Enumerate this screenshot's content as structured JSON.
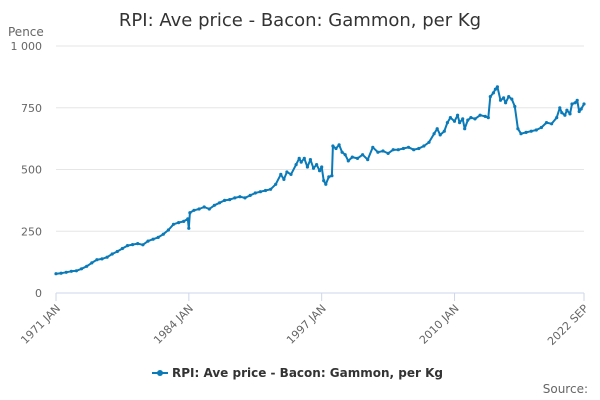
{
  "chart_data": {
    "type": "line",
    "title": "RPI: Ave price - Bacon: Gammon, per Kg",
    "unit_label": "Pence",
    "ylim": [
      0,
      1000
    ],
    "y_ticks": [
      {
        "value": 0,
        "label": "0"
      },
      {
        "value": 250,
        "label": "250"
      },
      {
        "value": 500,
        "label": "500"
      },
      {
        "value": 750,
        "label": "750"
      },
      {
        "value": 1000,
        "label": "1 000"
      }
    ],
    "x_range": [
      1971.0,
      2022.67
    ],
    "x_ticks": [
      {
        "value": 1971.0,
        "label": "1971 JAN"
      },
      {
        "value": 1984.0,
        "label": "1984 JAN"
      },
      {
        "value": 1997.0,
        "label": "1997 JAN"
      },
      {
        "value": 2010.0,
        "label": "2010 JAN"
      },
      {
        "value": 2022.67,
        "label": "2022 SEP"
      }
    ],
    "grid": true,
    "legend_position": "bottom-center",
    "series": [
      {
        "name": "RPI: Ave price - Bacon: Gammon, per Kg",
        "color": "#0a7ab8",
        "points": [
          [
            1971.0,
            78
          ],
          [
            1971.5,
            80
          ],
          [
            1972.0,
            84
          ],
          [
            1972.5,
            88
          ],
          [
            1973.0,
            90
          ],
          [
            1973.5,
            98
          ],
          [
            1974.0,
            108
          ],
          [
            1974.5,
            122
          ],
          [
            1975.0,
            135
          ],
          [
            1975.5,
            138
          ],
          [
            1976.0,
            145
          ],
          [
            1976.5,
            158
          ],
          [
            1977.0,
            168
          ],
          [
            1977.5,
            180
          ],
          [
            1978.0,
            192
          ],
          [
            1978.5,
            196
          ],
          [
            1979.0,
            200
          ],
          [
            1979.5,
            195
          ],
          [
            1980.0,
            210
          ],
          [
            1980.5,
            218
          ],
          [
            1981.0,
            225
          ],
          [
            1981.5,
            238
          ],
          [
            1982.0,
            255
          ],
          [
            1982.5,
            278
          ],
          [
            1983.0,
            285
          ],
          [
            1983.5,
            290
          ],
          [
            1983.9,
            300
          ],
          [
            1984.0,
            262
          ],
          [
            1984.1,
            325
          ],
          [
            1984.5,
            335
          ],
          [
            1985.0,
            340
          ],
          [
            1985.5,
            348
          ],
          [
            1986.0,
            340
          ],
          [
            1986.5,
            355
          ],
          [
            1987.0,
            365
          ],
          [
            1987.5,
            375
          ],
          [
            1988.0,
            378
          ],
          [
            1988.5,
            385
          ],
          [
            1989.0,
            390
          ],
          [
            1989.5,
            385
          ],
          [
            1990.0,
            395
          ],
          [
            1990.5,
            405
          ],
          [
            1991.0,
            410
          ],
          [
            1991.5,
            415
          ],
          [
            1992.0,
            420
          ],
          [
            1992.5,
            440
          ],
          [
            1993.0,
            480
          ],
          [
            1993.3,
            460
          ],
          [
            1993.6,
            490
          ],
          [
            1994.0,
            480
          ],
          [
            1994.5,
            520
          ],
          [
            1994.8,
            545
          ],
          [
            1995.0,
            530
          ],
          [
            1995.3,
            545
          ],
          [
            1995.6,
            510
          ],
          [
            1995.9,
            540
          ],
          [
            1996.2,
            505
          ],
          [
            1996.5,
            520
          ],
          [
            1996.8,
            495
          ],
          [
            1997.0,
            510
          ],
          [
            1997.2,
            455
          ],
          [
            1997.4,
            440
          ],
          [
            1997.7,
            470
          ],
          [
            1998.0,
            475
          ],
          [
            1998.1,
            595
          ],
          [
            1998.4,
            585
          ],
          [
            1998.7,
            600
          ],
          [
            1999.0,
            570
          ],
          [
            1999.3,
            560
          ],
          [
            1999.6,
            535
          ],
          [
            2000.0,
            550
          ],
          [
            2000.5,
            545
          ],
          [
            2001.0,
            560
          ],
          [
            2001.5,
            540
          ],
          [
            2002.0,
            590
          ],
          [
            2002.5,
            570
          ],
          [
            2003.0,
            575
          ],
          [
            2003.5,
            565
          ],
          [
            2004.0,
            580
          ],
          [
            2004.5,
            580
          ],
          [
            2005.0,
            585
          ],
          [
            2005.5,
            590
          ],
          [
            2006.0,
            580
          ],
          [
            2006.5,
            585
          ],
          [
            2007.0,
            595
          ],
          [
            2007.5,
            610
          ],
          [
            2008.0,
            645
          ],
          [
            2008.3,
            665
          ],
          [
            2008.6,
            640
          ],
          [
            2009.0,
            655
          ],
          [
            2009.3,
            690
          ],
          [
            2009.6,
            710
          ],
          [
            2010.0,
            695
          ],
          [
            2010.3,
            720
          ],
          [
            2010.5,
            690
          ],
          [
            2010.8,
            705
          ],
          [
            2011.0,
            665
          ],
          [
            2011.3,
            700
          ],
          [
            2011.6,
            710
          ],
          [
            2012.0,
            705
          ],
          [
            2012.5,
            720
          ],
          [
            2013.0,
            715
          ],
          [
            2013.3,
            710
          ],
          [
            2013.5,
            795
          ],
          [
            2013.8,
            810
          ],
          [
            2014.0,
            825
          ],
          [
            2014.2,
            835
          ],
          [
            2014.5,
            780
          ],
          [
            2014.8,
            790
          ],
          [
            2015.0,
            770
          ],
          [
            2015.3,
            795
          ],
          [
            2015.6,
            785
          ],
          [
            2015.9,
            755
          ],
          [
            2016.2,
            665
          ],
          [
            2016.5,
            645
          ],
          [
            2017.0,
            650
          ],
          [
            2017.5,
            655
          ],
          [
            2018.0,
            660
          ],
          [
            2018.5,
            670
          ],
          [
            2019.0,
            690
          ],
          [
            2019.5,
            685
          ],
          [
            2020.0,
            710
          ],
          [
            2020.3,
            750
          ],
          [
            2020.5,
            730
          ],
          [
            2020.8,
            720
          ],
          [
            2021.0,
            740
          ],
          [
            2021.3,
            725
          ],
          [
            2021.5,
            765
          ],
          [
            2021.8,
            770
          ],
          [
            2022.0,
            780
          ],
          [
            2022.2,
            735
          ],
          [
            2022.4,
            745
          ],
          [
            2022.67,
            765
          ]
        ]
      }
    ],
    "legend": [
      {
        "label": "RPI: Ave price - Bacon: Gammon, per Kg",
        "color": "#0a7ab8"
      }
    ],
    "credits": "Source:"
  }
}
